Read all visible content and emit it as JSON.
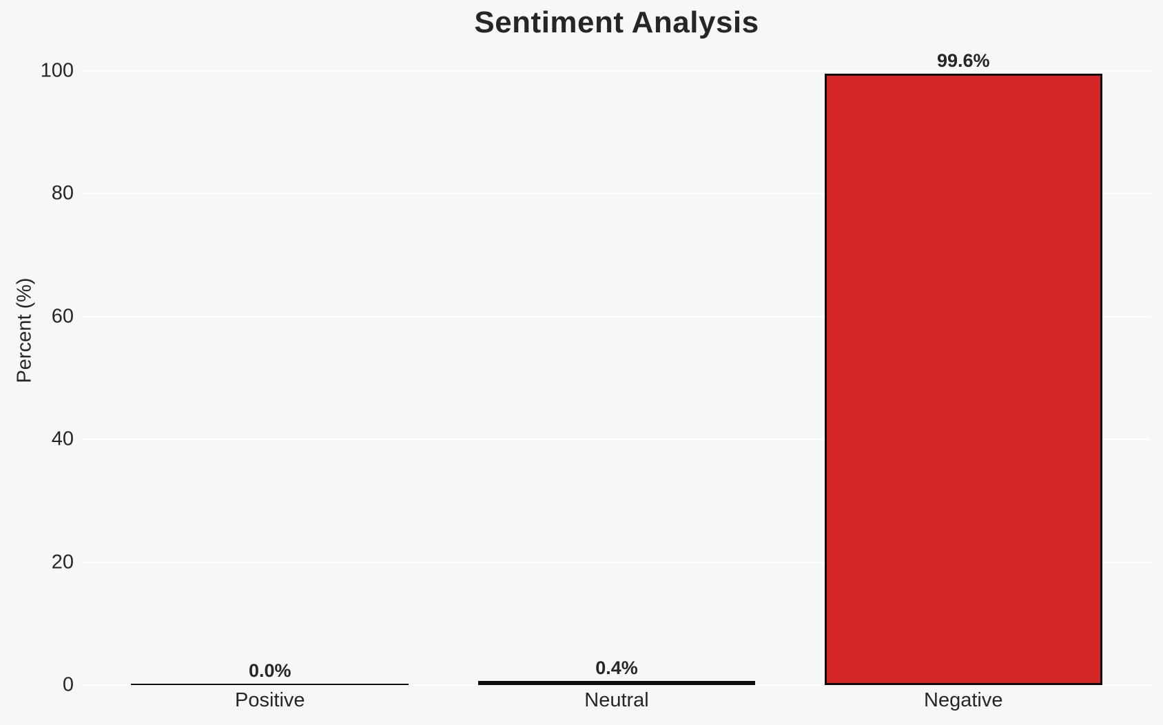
{
  "chart_data": {
    "type": "bar",
    "title": "Sentiment Analysis",
    "xlabel": "",
    "ylabel": "Percent (%)",
    "categories": [
      "Positive",
      "Neutral",
      "Negative"
    ],
    "values": [
      0.0,
      0.4,
      99.6
    ],
    "bar_labels": [
      "0.0%",
      "0.4%",
      "99.6%"
    ],
    "yticks": [
      0,
      20,
      40,
      60,
      80,
      100
    ],
    "ytick_labels": [
      "0",
      "20",
      "40",
      "60",
      "80",
      "100"
    ],
    "ylim": [
      0,
      100
    ],
    "grid": "horizontal",
    "legend": "none",
    "colors": {
      "background": "#f7f7f7",
      "gridline": "#ffffff",
      "text": "#262626",
      "negative_bar_fill": "#d62728",
      "bar_edge": "#0d0d0d"
    }
  }
}
